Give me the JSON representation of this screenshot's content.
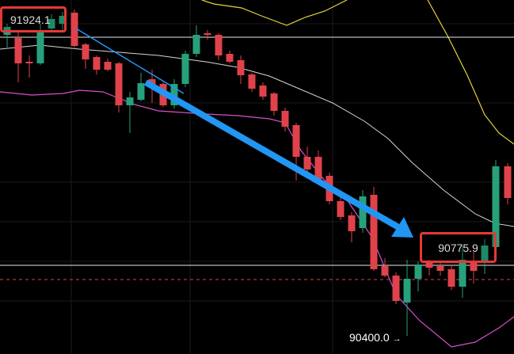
{
  "chart": {
    "high_label": "91924.1",
    "mid_label": "90775.9",
    "low_label": "90400.0",
    "low_arrow": "→"
  },
  "colors": {
    "background": "#000000",
    "grid": "#1a1a1a",
    "bull": "#26a17b",
    "bear": "#e0424b",
    "ma_white": "#d6d6d6",
    "bb_upper": "#e6d33b",
    "bb_lower": "#d84fc8",
    "trend_arrow": "#2196f3",
    "highlight_box": "#e53935",
    "price_line": "#e8e8e8",
    "dashed_line": "#e0424b"
  },
  "icons": {
    "trend": "arrow-down-right-icon"
  }
}
